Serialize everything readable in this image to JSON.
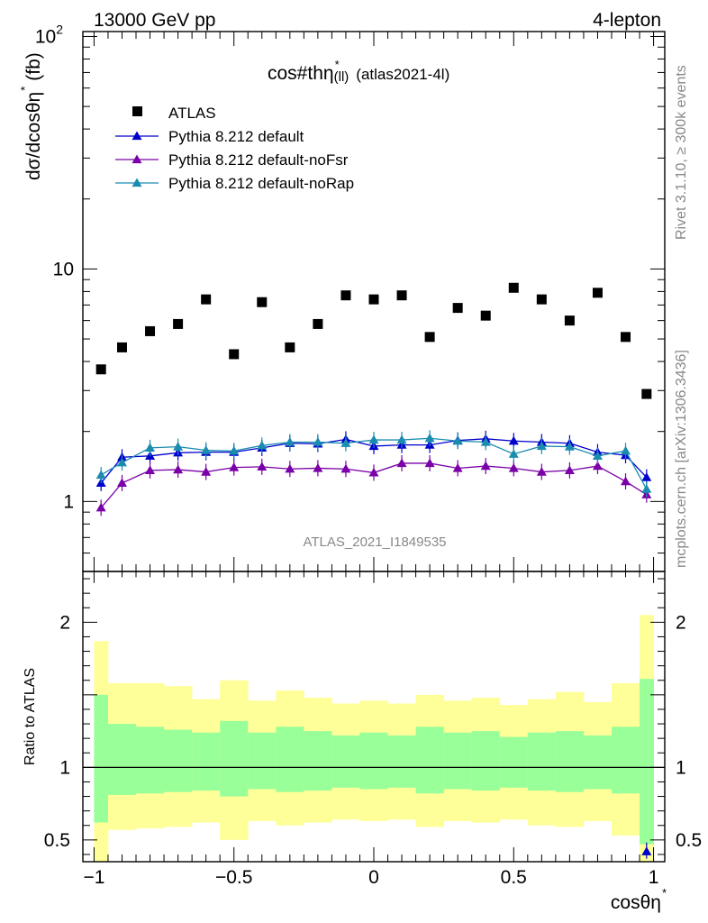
{
  "header": {
    "energy_label": "13000 GeV pp",
    "process_label": "4-lepton",
    "plot_title_main": "cos#thη",
    "plot_title_sup": "*",
    "plot_title_sub": "(ll)",
    "plot_title_tag": "(atlas2021-4l)",
    "analysis_id": "ATLAS_2021_I1849535",
    "side_rivet": "Rivet 3.1.10, ≥ 300k events",
    "side_mcplots": "mcplots.cern.ch [arXiv:1306.3436]"
  },
  "colors": {
    "atlas": "#000000",
    "default": "#0000cc",
    "noFsr": "#7a00a8",
    "noRap": "#1a8cb0",
    "band_inner": "#99ff99",
    "band_outer": "#ffff99"
  },
  "chart_data": [
    {
      "type": "scatter",
      "title": "cos#thη* (ll) (atlas2021-4l)",
      "ylabel_main": "dσ/dcosθη",
      "ylabel_sup": "*",
      "ylabel_unit": "(fb)",
      "yscale": "log",
      "ylim": [
        0.5,
        105
      ],
      "xlim": [
        -1.04,
        1.04
      ],
      "y_ticks": [
        {
          "value": 1,
          "label": "1"
        },
        {
          "value": 10,
          "label": "10"
        },
        {
          "value": 100,
          "label": "10",
          "sup": "2"
        }
      ],
      "x": [
        -0.975,
        -0.9,
        -0.8,
        -0.7,
        -0.6,
        -0.5,
        -0.4,
        -0.3,
        -0.2,
        -0.1,
        0.0,
        0.1,
        0.2,
        0.3,
        0.4,
        0.5,
        0.6,
        0.7,
        0.8,
        0.9,
        0.975
      ],
      "legend": [
        {
          "key": "atlas",
          "label": "ATLAS"
        },
        {
          "key": "default",
          "label": "Pythia 8.212 default"
        },
        {
          "key": "noFsr",
          "label": "Pythia 8.212 default-noFsr"
        },
        {
          "key": "noRap",
          "label": "Pythia 8.212 default-noRap"
        }
      ],
      "series": [
        {
          "name": "ATLAS",
          "key": "atlas",
          "marker": "square",
          "values": [
            3.7,
            4.6,
            5.4,
            5.8,
            7.4,
            4.3,
            7.2,
            4.6,
            5.8,
            7.7,
            7.4,
            7.7,
            5.1,
            6.8,
            6.3,
            8.3,
            7.4,
            6.0,
            7.9,
            5.1,
            2.9
          ]
        },
        {
          "name": "Pythia 8.212 default",
          "key": "default",
          "marker": "triangle",
          "values": [
            1.2,
            1.55,
            1.57,
            1.62,
            1.63,
            1.63,
            1.7,
            1.78,
            1.77,
            1.85,
            1.73,
            1.75,
            1.75,
            1.83,
            1.86,
            1.82,
            1.8,
            1.78,
            1.63,
            1.58,
            1.27
          ]
        },
        {
          "name": "Pythia 8.212 default-noFsr",
          "key": "noFsr",
          "marker": "triangle",
          "values": [
            0.94,
            1.2,
            1.36,
            1.37,
            1.34,
            1.4,
            1.41,
            1.38,
            1.39,
            1.38,
            1.33,
            1.46,
            1.46,
            1.39,
            1.42,
            1.39,
            1.34,
            1.36,
            1.42,
            1.22,
            1.07
          ]
        },
        {
          "name": "Pythia 8.212 default-noRap",
          "key": "noRap",
          "marker": "triangle",
          "values": [
            1.3,
            1.47,
            1.7,
            1.72,
            1.66,
            1.65,
            1.74,
            1.8,
            1.8,
            1.78,
            1.84,
            1.84,
            1.87,
            1.82,
            1.8,
            1.6,
            1.73,
            1.72,
            1.57,
            1.65,
            1.13
          ]
        }
      ]
    },
    {
      "type": "area",
      "ylabel": "Ratio to ATLAS",
      "xlabel_main": "cosθη",
      "xlabel_sup": "*",
      "ylim": [
        0.35,
        2.35
      ],
      "xlim": [
        -1.04,
        1.04
      ],
      "y_ticks": [
        {
          "value": 0.5,
          "label": "0.5"
        },
        {
          "value": 1,
          "label": "1"
        },
        {
          "value": 2,
          "label": "2"
        }
      ],
      "x_ticks": [
        {
          "value": -1,
          "label": "−1"
        },
        {
          "value": -0.5,
          "label": "−0.5"
        },
        {
          "value": 0,
          "label": "0"
        },
        {
          "value": 0.5,
          "label": "0.5"
        },
        {
          "value": 1,
          "label": "1"
        }
      ],
      "bin_edges": [
        -1.0,
        -0.95,
        -0.85,
        -0.75,
        -0.65,
        -0.55,
        -0.45,
        -0.35,
        -0.25,
        -0.15,
        -0.05,
        0.05,
        0.15,
        0.25,
        0.35,
        0.45,
        0.55,
        0.65,
        0.75,
        0.85,
        0.95,
        1.0
      ],
      "inner_band_lo": [
        0.62,
        0.81,
        0.82,
        0.83,
        0.84,
        0.8,
        0.85,
        0.83,
        0.84,
        0.86,
        0.85,
        0.86,
        0.82,
        0.85,
        0.84,
        0.86,
        0.84,
        0.83,
        0.85,
        0.82,
        0.47
      ],
      "inner_band_hi": [
        1.5,
        1.3,
        1.28,
        1.26,
        1.24,
        1.32,
        1.24,
        1.28,
        1.25,
        1.22,
        1.24,
        1.22,
        1.28,
        1.24,
        1.25,
        1.21,
        1.24,
        1.25,
        1.22,
        1.28,
        1.61
      ],
      "outer_band_lo": [
        0.35,
        0.57,
        0.58,
        0.59,
        0.62,
        0.5,
        0.63,
        0.6,
        0.62,
        0.64,
        0.63,
        0.64,
        0.59,
        0.63,
        0.62,
        0.64,
        0.6,
        0.59,
        0.63,
        0.53,
        0.35
      ],
      "outer_band_hi": [
        1.87,
        1.58,
        1.58,
        1.56,
        1.47,
        1.6,
        1.46,
        1.53,
        1.48,
        1.44,
        1.46,
        1.44,
        1.5,
        1.46,
        1.48,
        1.43,
        1.47,
        1.52,
        1.45,
        1.58,
        2.05
      ],
      "series": [
        {
          "name": "Pythia 8.212 default ratio",
          "key": "default",
          "marker": "triangle",
          "points": [
            {
              "x": 0.975,
              "y": 0.42
            }
          ]
        }
      ]
    }
  ]
}
